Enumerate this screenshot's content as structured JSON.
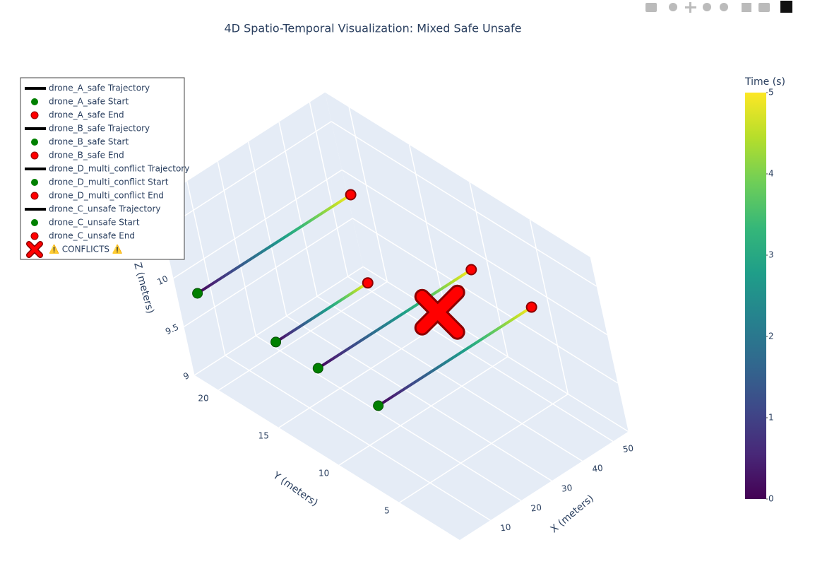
{
  "chart_data": {
    "type": "scatter3d",
    "title": "4D Spatio-Temporal Visualization: Mixed Safe Unsafe",
    "x_label": "X (meters)",
    "y_label": "Y (meters)",
    "z_label": "Z (meters)",
    "xlim": [
      0,
      55
    ],
    "ylim": [
      0,
      22
    ],
    "zlim": [
      9,
      10.8
    ],
    "xticks": [
      10,
      20,
      30,
      40,
      50
    ],
    "yticks": [
      5,
      10,
      15,
      20
    ],
    "zticks": [
      9,
      9.5,
      10,
      10.5
    ],
    "grid": true,
    "legend": "top-left",
    "start_color": "#008000",
    "end_color": "#ff0000",
    "colorbar": {
      "title": "Time (s)",
      "lim": [
        0,
        5
      ],
      "ticks": [
        0,
        1,
        2,
        3,
        4,
        5
      ],
      "colorscale": "viridis"
    },
    "drones": [
      {
        "trajectory_name": "drone_A_safe Trajectory",
        "start_name": "drone_A_safe Start",
        "end_name": "drone_A_safe End",
        "x": [
          0,
          50
        ],
        "y": [
          20,
          20
        ],
        "z": [
          10,
          10
        ],
        "t": [
          0,
          5
        ]
      },
      {
        "trajectory_name": "drone_B_safe Trajectory",
        "start_name": "drone_B_safe Start",
        "end_name": "drone_B_safe End",
        "x": [
          0,
          30
        ],
        "y": [
          13.5,
          13.5
        ],
        "z": [
          10,
          10
        ],
        "t": [
          0,
          5
        ]
      },
      {
        "trajectory_name": "drone_D_multi_conflict Trajectory",
        "start_name": "drone_D_multi_conflict Start",
        "end_name": "drone_D_multi_conflict End",
        "x": [
          0,
          50
        ],
        "y": [
          10,
          10
        ],
        "z": [
          10,
          10
        ],
        "t": [
          0,
          5
        ]
      },
      {
        "trajectory_name": "drone_C_unsafe Trajectory",
        "start_name": "drone_C_unsafe Start",
        "end_name": "drone_C_unsafe End",
        "x": [
          0,
          50
        ],
        "y": [
          5,
          5
        ],
        "z": [
          10,
          10
        ],
        "t": [
          0,
          5
        ]
      }
    ],
    "conflicts": {
      "name": "⚠️ CONFLICTS ⚠️",
      "color": "#ff0000",
      "x": [
        30
      ],
      "y": [
        7
      ],
      "z": [
        10.2
      ]
    }
  }
}
